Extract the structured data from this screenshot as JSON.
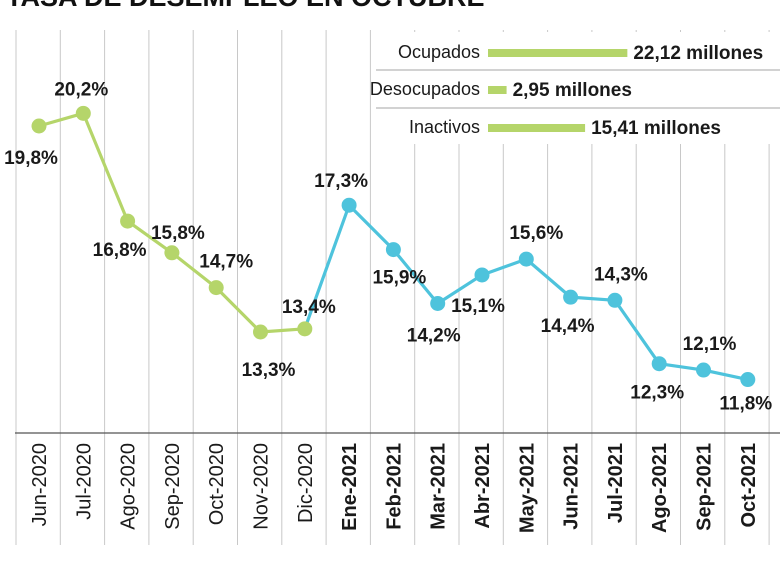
{
  "chart_data": {
    "type": "line",
    "title": "TASA DE DESEMPLEO EN OCTUBRE",
    "categories": [
      "Jun-2020",
      "Jul-2020",
      "Ago-2020",
      "Sep-2020",
      "Oct-2020",
      "Nov-2020",
      "Dic-2020",
      "Ene-2021",
      "Feb-2021",
      "Mar-2021",
      "Abr-2021",
      "May-2021",
      "Jun-2021",
      "Jul-2021",
      "Ago-2021",
      "Sep-2021",
      "Oct-2021"
    ],
    "bold_categories": [
      "Ene-2021",
      "Feb-2021",
      "Mar-2021",
      "Abr-2021",
      "May-2021",
      "Jun-2021",
      "Jul-2021",
      "Ago-2021",
      "Sep-2021",
      "Oct-2021"
    ],
    "values": [
      19.8,
      20.2,
      16.8,
      15.8,
      14.7,
      13.3,
      13.4,
      17.3,
      15.9,
      14.2,
      15.1,
      15.6,
      14.4,
      14.3,
      12.3,
      12.1,
      11.8
    ],
    "labels": [
      "19,8%",
      "20,2%",
      "16,8%",
      "15,8%",
      "14,7%",
      "13,3%",
      "13,4%",
      "17,3%",
      "15,9%",
      "14,2%",
      "15,1%",
      "15,6%",
      "14,4%",
      "14,3%",
      "12,3%",
      "12,1%",
      "11,8%"
    ],
    "series": [
      {
        "name": "2020",
        "start": 0,
        "end": 6,
        "color": "#b5d56a"
      },
      {
        "name": "2021",
        "start": 7,
        "end": 16,
        "color": "#4ec3dc"
      }
    ],
    "ylim": [
      8,
      22
    ],
    "grid": "vertical",
    "legend": [
      {
        "label": "Ocupados",
        "value": "22,12 millones",
        "amount": 22.12,
        "color": "#b5d56a"
      },
      {
        "label": "Desocupados",
        "value": "2,95 millones",
        "amount": 2.95,
        "color": "#b5d56a"
      },
      {
        "label": "Inactivos",
        "value": "15,41 millones",
        "amount": 15.41,
        "color": "#b5d56a"
      }
    ],
    "legend_position": "top-right"
  }
}
